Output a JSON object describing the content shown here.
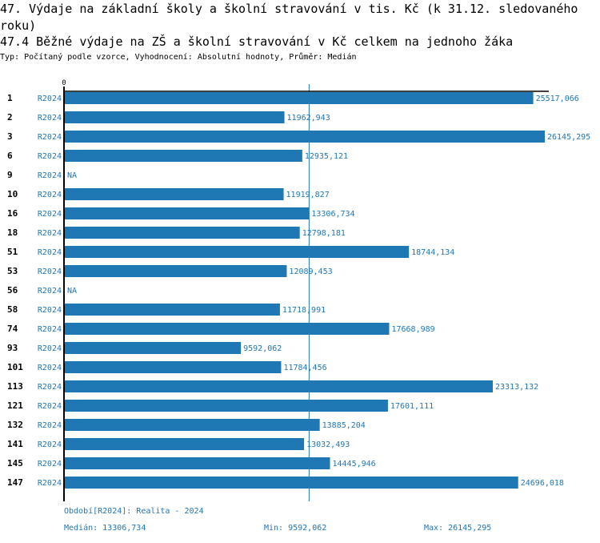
{
  "header": {
    "title_line1": "47. Výdaje na základní školy a školní stravování v tis. Kč (k 31.12. sledovaného",
    "title_line2": "roku)",
    "subtitle": "47.4 Běžné výdaje na ZŠ a školní stravování v Kč celkem na jednoho žáka",
    "meta": "Typ: Počítaný podle vzorce, Vyhodnocení: Absolutní hodnoty, Průměr: Medián"
  },
  "chart_data": {
    "type": "bar",
    "orientation": "horizontal",
    "title": "47.4 Běžné výdaje na ZŠ a školní stravování v Kč celkem na jednoho žáka",
    "xlabel": "",
    "ylabel": "",
    "x_tick_labels": [
      "0"
    ],
    "xlim": [
      0,
      26145.295
    ],
    "median_line": 13306.734,
    "bar_color": "#1f77b4",
    "categories": [
      "1",
      "2",
      "3",
      "6",
      "9",
      "10",
      "16",
      "18",
      "51",
      "53",
      "56",
      "58",
      "74",
      "93",
      "101",
      "113",
      "121",
      "132",
      "141",
      "145",
      "147"
    ],
    "periods": [
      "R2024",
      "R2024",
      "R2024",
      "R2024",
      "R2024",
      "R2024",
      "R2024",
      "R2024",
      "R2024",
      "R2024",
      "R2024",
      "R2024",
      "R2024",
      "R2024",
      "R2024",
      "R2024",
      "R2024",
      "R2024",
      "R2024",
      "R2024",
      "R2024"
    ],
    "values": [
      25517.066,
      11962.943,
      26145.295,
      12935.121,
      null,
      11919.827,
      13306.734,
      12798.181,
      18744.134,
      12089.453,
      null,
      11718.991,
      17668.989,
      9592.062,
      11784.456,
      23313.132,
      17601.111,
      13885.204,
      13032.493,
      14445.946,
      24696.018
    ],
    "value_labels": [
      "25517,066",
      "11962,943",
      "26145,295",
      "12935,121",
      "NA",
      "11919,827",
      "13306,734",
      "12798,181",
      "18744,134",
      "12089,453",
      "NA",
      "11718,991",
      "17668,989",
      "9592,062",
      "11784,456",
      "23313,132",
      "17601,111",
      "13885,204",
      "13032,493",
      "14445,946",
      "24696,018"
    ]
  },
  "footer": {
    "period_note": "Období[R2024]: Realita - 2024",
    "median": "Medián: 13306,734",
    "min": "Min: 9592,062",
    "max": "Max: 26145,295"
  }
}
